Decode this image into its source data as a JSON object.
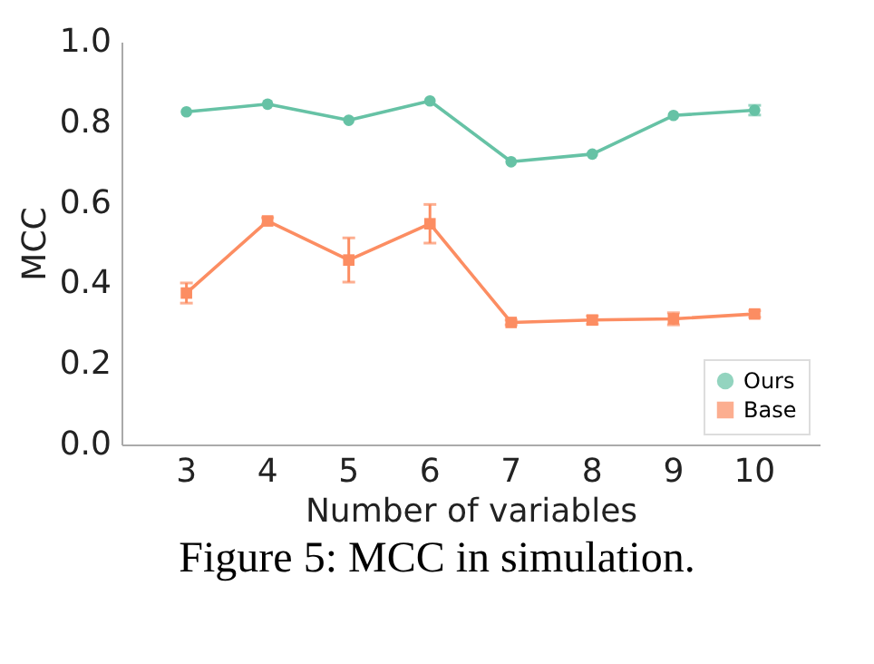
{
  "chart_data": {
    "type": "line",
    "xlabel": "Number of variables",
    "ylabel": "MCC",
    "categories": [
      "3",
      "4",
      "5",
      "6",
      "7",
      "8",
      "9",
      "10"
    ],
    "series": [
      {
        "name": "Ours",
        "color": "#66c2a5",
        "marker": "circle",
        "values": [
          0.826,
          0.845,
          0.805,
          0.853,
          0.702,
          0.721,
          0.817,
          0.83
        ],
        "errors": [
          null,
          null,
          null,
          null,
          null,
          null,
          null,
          0.012
        ]
      },
      {
        "name": "Base",
        "color": "#fc8d62",
        "marker": "square",
        "values": [
          0.376,
          0.555,
          0.458,
          0.548,
          0.303,
          0.309,
          0.312,
          0.324
        ],
        "errors": [
          0.025,
          0.008,
          0.055,
          0.048,
          0.006,
          0.01,
          0.015,
          0.008
        ]
      }
    ],
    "ylim": [
      0,
      1
    ],
    "yticks": [
      {
        "value": 0,
        "label": "0.0"
      },
      {
        "value": 0.2,
        "label": "0.2"
      },
      {
        "value": 0.4,
        "label": "0.4"
      },
      {
        "value": 0.6,
        "label": "0.6"
      },
      {
        "value": 0.8,
        "label": "0.8"
      },
      {
        "value": 1,
        "label": "1.0"
      }
    ],
    "grid": false,
    "legend": "bottom right",
    "annotations": [
      "Figure 5: MCC in simulation."
    ]
  }
}
